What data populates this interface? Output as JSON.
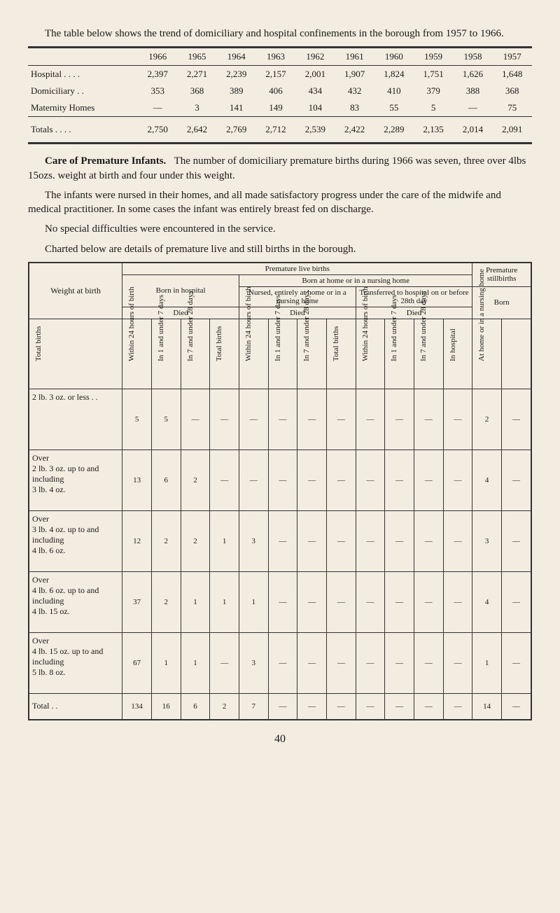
{
  "intro": {
    "p1": "The table below shows the trend of domiciliary and hospital confinements in the borough from 1957 to 1966.",
    "p2a": "Care of Premature Infants.",
    "p2b": "The number of domiciliary premature births during 1966 was seven, three over 4lbs 15ozs. weight at birth and four under this weight.",
    "p3": "The infants were nursed in their homes, and all made satisfactory progress under the care of the midwife and medical practitioner. In some cases the infant was entirely breast fed on discharge.",
    "p4": "No special difficulties were encountered in the service.",
    "p5": "Charted below are details of premature live and still births in the borough."
  },
  "table1": {
    "years": [
      "1966",
      "1965",
      "1964",
      "1963",
      "1962",
      "1961",
      "1960",
      "1959",
      "1958",
      "1957"
    ],
    "rows": [
      {
        "label": "Hospital . .    . .",
        "vals": [
          "2,397",
          "2,271",
          "2,239",
          "2,157",
          "2,001",
          "1,907",
          "1,824",
          "1,751",
          "1,626",
          "1,648"
        ]
      },
      {
        "label": "Domiciliary    . .",
        "vals": [
          "353",
          "368",
          "389",
          "406",
          "434",
          "432",
          "410",
          "379",
          "388",
          "368"
        ]
      },
      {
        "label": "Maternity Homes",
        "vals": [
          "—",
          "3",
          "141",
          "149",
          "104",
          "83",
          "55",
          "5",
          "—",
          "75"
        ]
      }
    ],
    "totals": {
      "label": "Totals . .    . .",
      "vals": [
        "2,750",
        "2,642",
        "2,769",
        "2,712",
        "2,539",
        "2,422",
        "2,289",
        "2,135",
        "2,014",
        "2,091"
      ]
    }
  },
  "table2": {
    "h_premature": "Premature live births",
    "h_bornhome": "Born at home or in a nursing home",
    "h_bornhosp": "Born in hospital",
    "h_nursed": "Nursed, entirely at home or in a nursing home",
    "h_transferred": "Transferred to hospital on or before 28th day",
    "h_prem_still": "Premature stillbirths",
    "h_weight": "Weight at birth",
    "h_died": "Died",
    "h_born": "Born",
    "rot": {
      "totalbirths": "Total births",
      "within24": "Within 24 hours of birth",
      "in1_7": "In 1 and under 7 days",
      "in7_28": "In 7 and under 28 days",
      "inhosp": "In hospital",
      "athome": "At home or in a nursing home"
    },
    "rows": [
      {
        "label": "2 lb. 3 oz. or less  . .",
        "v": [
          "5",
          "5",
          "—",
          "—",
          "—",
          "—",
          "—",
          "—",
          "—",
          "—",
          "—",
          "—",
          "2",
          "—"
        ]
      },
      {
        "label": "Over\n2 lb. 3 oz. up to and including\n3 lb. 4 oz.",
        "v": [
          "13",
          "6",
          "2",
          "—",
          "—",
          "—",
          "—",
          "—",
          "—",
          "—",
          "—",
          "—",
          "4",
          "—"
        ]
      },
      {
        "label": "Over\n3 lb. 4 oz. up to and including\n4 lb. 6 oz.",
        "v": [
          "12",
          "2",
          "2",
          "1",
          "3",
          "—",
          "—",
          "—",
          "—",
          "—",
          "—",
          "—",
          "3",
          "—"
        ]
      },
      {
        "label": "Over\n4 lb. 6 oz. up to and including\n4 lb. 15 oz.",
        "v": [
          "37",
          "2",
          "1",
          "1",
          "1",
          "—",
          "—",
          "—",
          "—",
          "—",
          "—",
          "—",
          "4",
          "—"
        ]
      },
      {
        "label": "Over\n4 lb. 15 oz. up to and including\n5 lb. 8 oz.",
        "v": [
          "67",
          "1",
          "1",
          "—",
          "3",
          "—",
          "—",
          "—",
          "—",
          "—",
          "—",
          "—",
          "1",
          "—"
        ]
      },
      {
        "label": "Total   . .",
        "v": [
          "134",
          "16",
          "6",
          "2",
          "7",
          "—",
          "—",
          "—",
          "—",
          "—",
          "—",
          "—",
          "14",
          "—"
        ]
      }
    ]
  },
  "page_number": "40"
}
